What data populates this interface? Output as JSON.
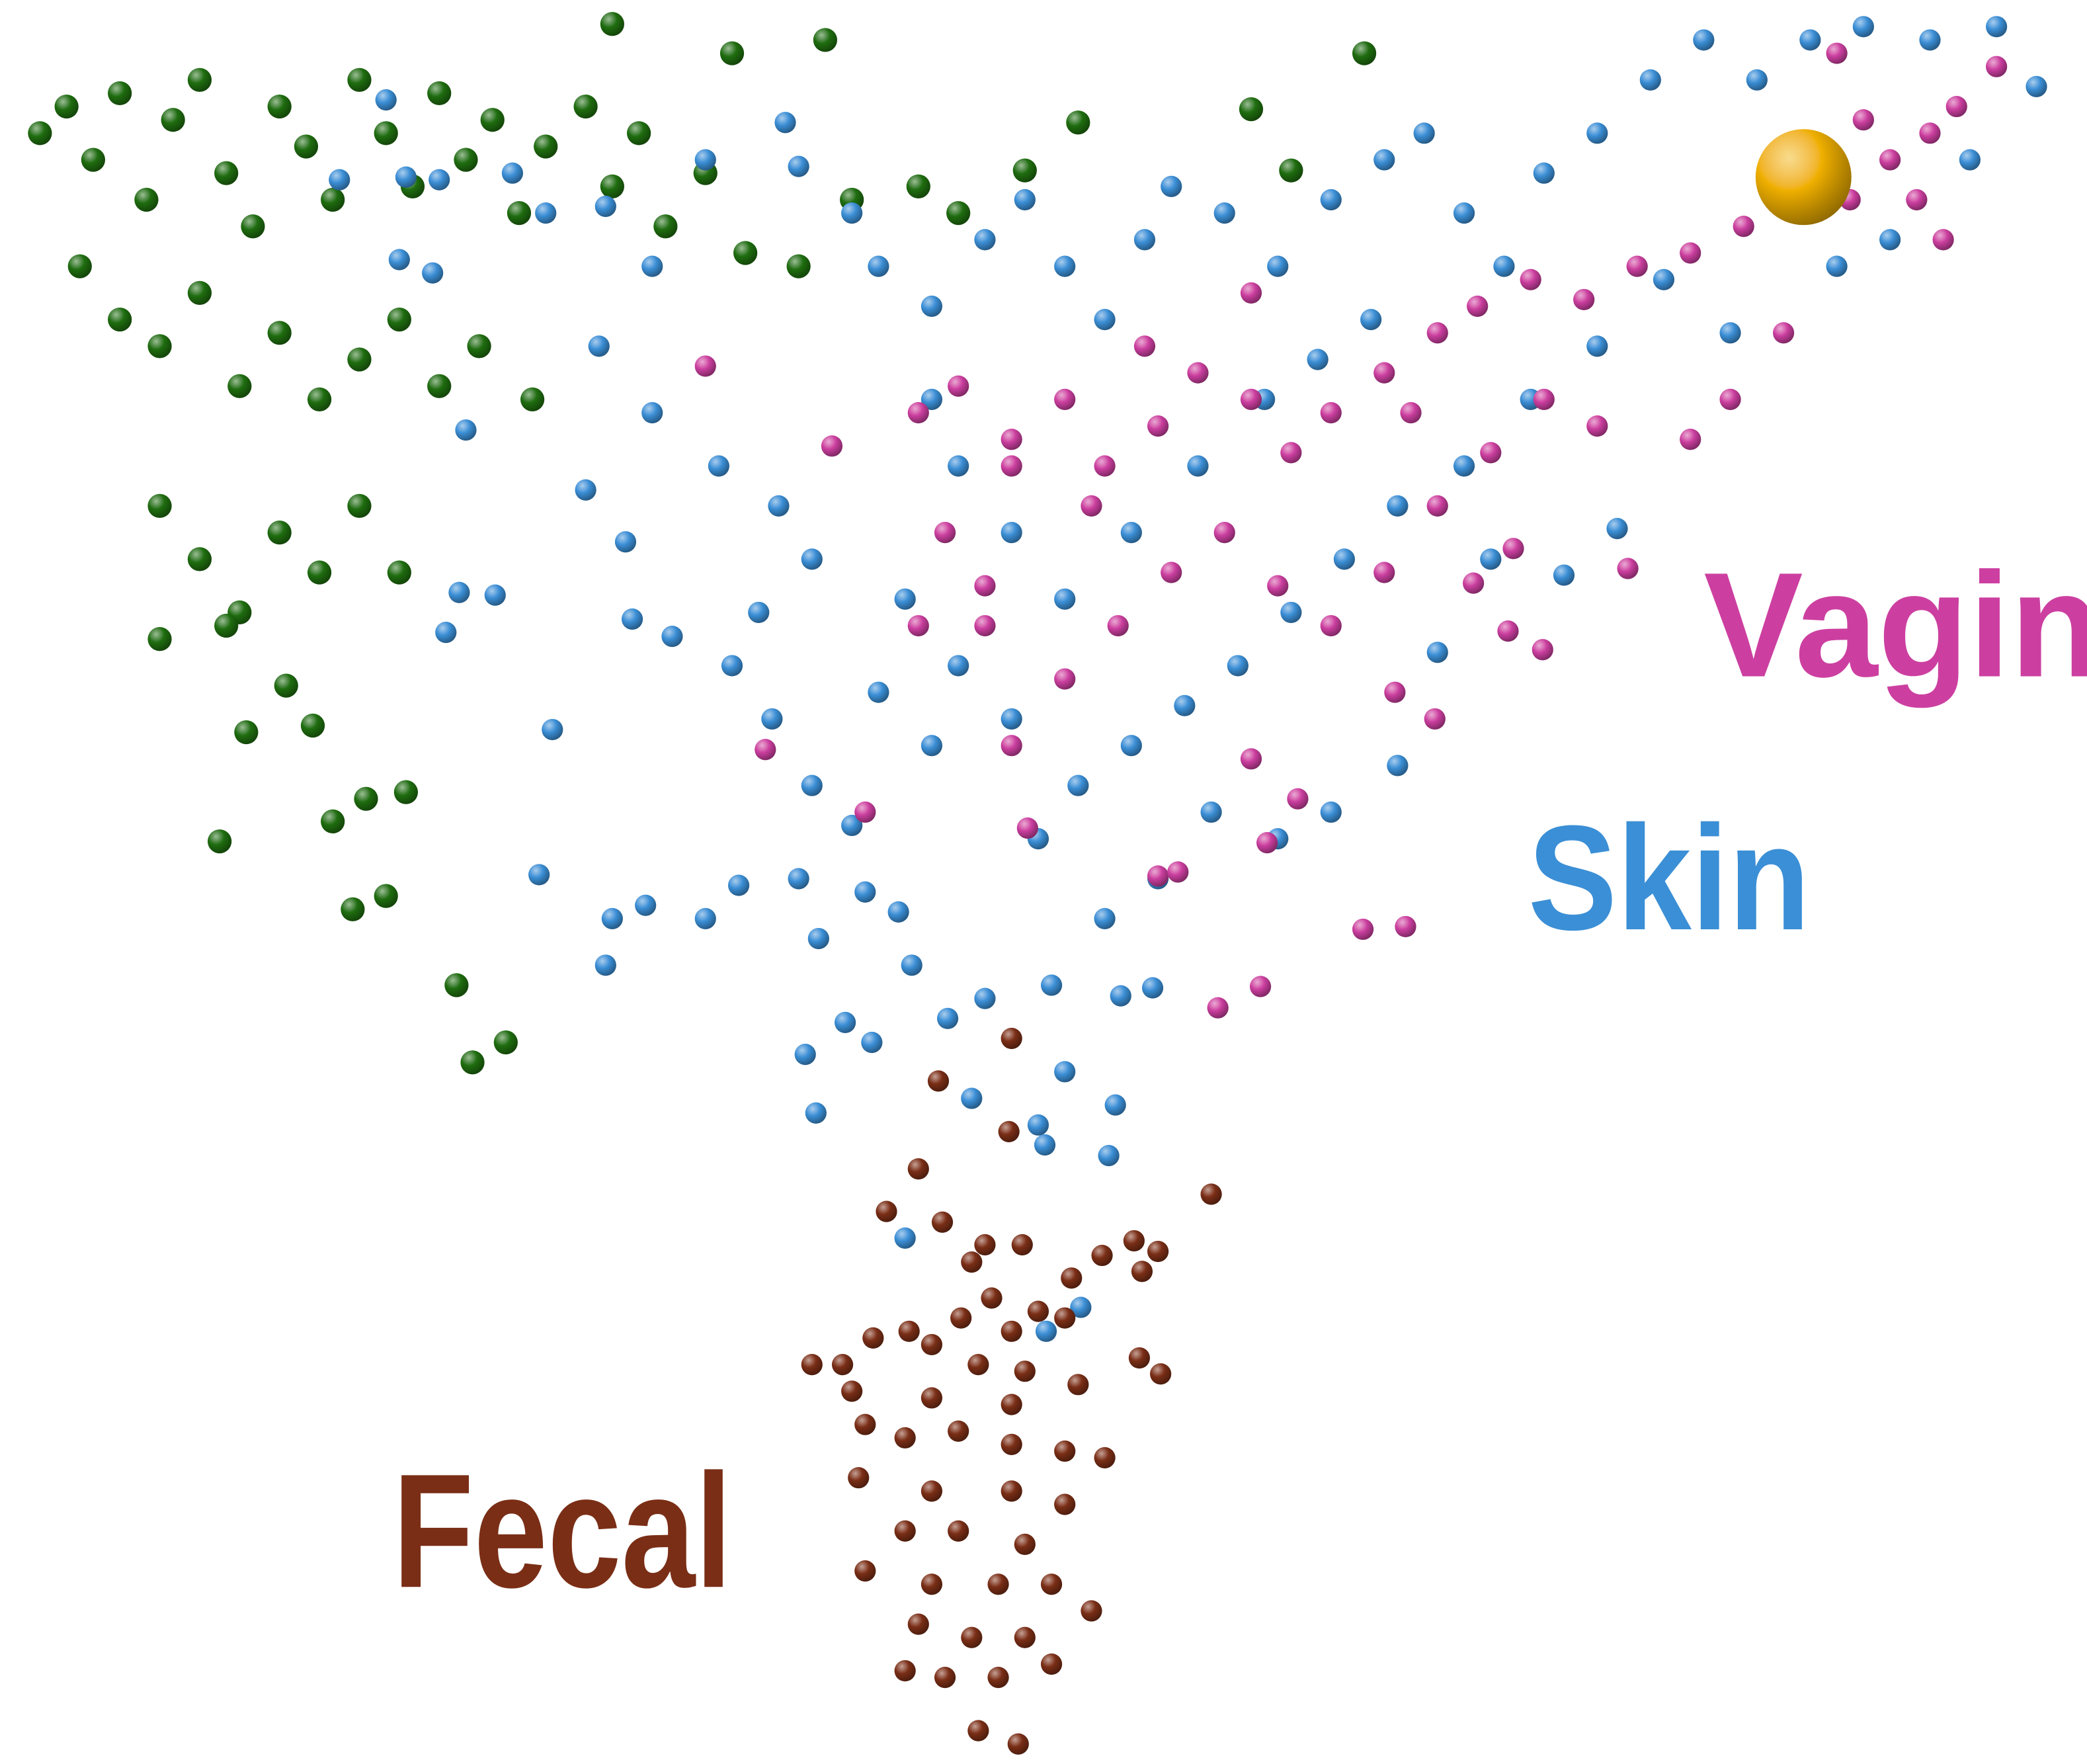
{
  "chart_data": {
    "type": "scatter",
    "xlim": [
      0,
      1568
    ],
    "ylim": [
      1325,
      0
    ],
    "series": [
      {
        "color": "#1f6e0f",
        "x": [
          30,
          50,
          70,
          90,
          110,
          130,
          150,
          170,
          190,
          210,
          230,
          250,
          270,
          290,
          310,
          330,
          350,
          370,
          390,
          410,
          440,
          460,
          480,
          500,
          530,
          560,
          600,
          640,
          690,
          720,
          60,
          90,
          120,
          150,
          180,
          210,
          240,
          270,
          300,
          330,
          360,
          400,
          120,
          150,
          180,
          210,
          240,
          270,
          300,
          120,
          170,
          215,
          185,
          235,
          165,
          250,
          275,
          305,
          265,
          290,
          343,
          355,
          380,
          460,
          620,
          550,
          1025,
          940,
          970,
          810,
          770
        ],
        "y": [
          100,
          80,
          120,
          70,
          150,
          90,
          60,
          130,
          170,
          80,
          110,
          150,
          60,
          100,
          140,
          70,
          120,
          90,
          160,
          110,
          80,
          140,
          100,
          170,
          130,
          190,
          200,
          150,
          140,
          160,
          200,
          240,
          260,
          220,
          290,
          250,
          300,
          270,
          240,
          290,
          260,
          300,
          380,
          420,
          460,
          400,
          430,
          380,
          430,
          480,
          470,
          515,
          550,
          545,
          632,
          617,
          600,
          595,
          683,
          673,
          740,
          798,
          783,
          18,
          30,
          40,
          40,
          82,
          128,
          92,
          128
        ]
      },
      {
        "name": "Skin",
        "color": "#3b8fd6",
        "x": [
          290,
          255,
          305,
          330,
          410,
          300,
          325,
          385,
          455,
          490,
          530,
          590,
          600,
          640,
          660,
          700,
          740,
          770,
          800,
          830,
          860,
          880,
          920,
          960,
          1000,
          1040,
          1070,
          1100,
          1130,
          1160,
          1200,
          1240,
          1280,
          1320,
          1360,
          1400,
          1450,
          1500,
          1530,
          1480,
          1420,
          1380,
          1300,
          1250,
          1200,
          1150,
          1100,
          1050,
          1010,
          970,
          930,
          890,
          850,
          810,
          780,
          830,
          870,
          910,
          960,
          1000,
          1050,
          1080,
          1120,
          1175,
          1215,
          350,
          450,
          490,
          540,
          585,
          610,
          570,
          550,
          580,
          610,
          640,
          600,
          555,
          530,
          485,
          460,
          455,
          405,
          415,
          335,
          345,
          372,
          475,
          505,
          440,
          470,
          615,
          650,
          685,
          675,
          740,
          712,
          635,
          655,
          605,
          613,
          730,
          780,
          785,
          800,
          838,
          833,
          790,
          842,
          866,
          680,
          812,
          786,
          700,
          720,
          760,
          800,
          850,
          900,
          950,
          990,
          1030,
          680,
          720,
          760,
          700,
          660
        ],
        "y": [
          75,
          135,
          133,
          135,
          160,
          195,
          205,
          130,
          155,
          200,
          120,
          92,
          125,
          160,
          200,
          230,
          180,
          150,
          200,
          240,
          180,
          140,
          160,
          200,
          150,
          120,
          100,
          160,
          200,
          130,
          100,
          60,
          30,
          60,
          30,
          20,
          30,
          20,
          65,
          120,
          180,
          200,
          250,
          210,
          260,
          300,
          350,
          380,
          420,
          460,
          500,
          530,
          560,
          590,
          630,
          690,
          660,
          610,
          630,
          610,
          575,
          490,
          420,
          432,
          397,
          323,
          260,
          310,
          350,
          380,
          420,
          460,
          500,
          540,
          590,
          620,
          660,
          665,
          690,
          680,
          690,
          725,
          657,
          548,
          475,
          445,
          447,
          465,
          478,
          368,
          407,
          705,
          670,
          725,
          685,
          750,
          765,
          768,
          783,
          792,
          836,
          825,
          845,
          860,
          805,
          830,
          868,
          740,
          748,
          742,
          930,
          982,
          1000,
          300,
          350,
          400,
          450,
          400,
          350,
          300,
          270,
          240,
          450,
          500,
          540,
          560,
          520
        ]
      },
      {
        "name": "Vagina",
        "color": "#cc3fa0",
        "x": [
          530,
          625,
          690,
          720,
          760,
          800,
          830,
          870,
          900,
          940,
          970,
          1000,
          1040,
          1080,
          1110,
          1150,
          1190,
          1230,
          1270,
          1310,
          1350,
          1390,
          1420,
          1450,
          1470,
          1440,
          1460,
          1500,
          1400,
          1380,
          1340,
          1300,
          1270,
          1200,
          1160,
          1120,
          1080,
          1040,
          1000,
          960,
          920,
          880,
          840,
          800,
          760,
          740,
          710,
          740,
          690,
          650,
          575,
          772,
          870,
          885,
          940,
          975,
          952,
          1024,
          1056,
          915,
          947,
          1107,
          1133,
          1159,
          1137,
          1223,
          1078,
          1048,
          760,
          820,
          860,
          940,
          1060
        ],
        "y": [
          275,
          335,
          310,
          290,
          330,
          300,
          350,
          320,
          280,
          300,
          340,
          310,
          280,
          250,
          230,
          210,
          225,
          200,
          190,
          170,
          160,
          150,
          120,
          100,
          80,
          150,
          180,
          50,
          90,
          40,
          250,
          300,
          330,
          320,
          300,
          340,
          380,
          430,
          470,
          440,
          400,
          430,
          470,
          510,
          560,
          470,
          400,
          440,
          470,
          610,
          563,
          622,
          658,
          655,
          570,
          600,
          633,
          698,
          696,
          757,
          741,
          438,
          474,
          488,
          412,
          427,
          540,
          520,
          350,
          380,
          260,
          220,
          310
        ]
      },
      {
        "name": "Fecal",
        "color": "#7a2e16",
        "x": [
          760,
          705,
          758,
          690,
          910,
          666,
          708,
          740,
          768,
          828,
          852,
          870,
          858,
          730,
          745,
          805,
          780,
          760,
          800,
          722,
          683,
          656,
          610,
          633,
          700,
          735,
          770,
          810,
          856,
          872,
          640,
          700,
          760,
          650,
          680,
          720,
          760,
          800,
          830,
          645,
          700,
          760,
          800,
          680,
          720,
          770,
          650,
          700,
          750,
          790,
          820,
          690,
          730,
          770,
          710,
          750,
          680,
          735,
          765,
          790
        ],
        "y": [
          780,
          812,
          850,
          878,
          897,
          910,
          918,
          935,
          935,
          943,
          932,
          940,
          955,
          948,
          975,
          960,
          985,
          1000,
          990,
          990,
          1000,
          1005,
          1025,
          1025,
          1010,
          1025,
          1030,
          1040,
          1020,
          1032,
          1045,
          1050,
          1055,
          1070,
          1080,
          1075,
          1085,
          1090,
          1095,
          1110,
          1120,
          1120,
          1130,
          1150,
          1150,
          1160,
          1180,
          1190,
          1190,
          1190,
          1210,
          1220,
          1230,
          1230,
          1260,
          1260,
          1255,
          1300,
          1310,
          1250
        ]
      },
      {
        "color": "#f0b000",
        "x": [
          1355
        ],
        "y": [
          133
        ]
      }
    ]
  }
}
